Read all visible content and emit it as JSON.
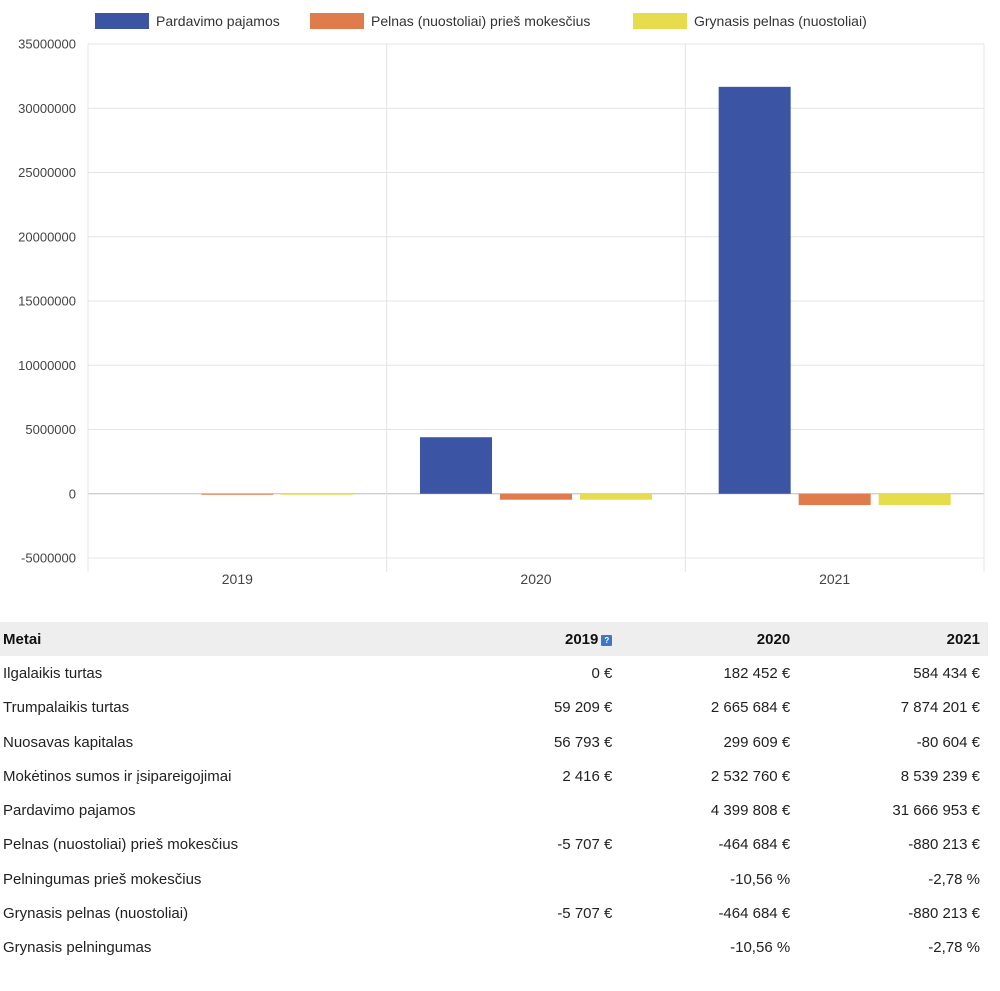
{
  "chart_data": {
    "type": "bar",
    "categories": [
      "2019",
      "2020",
      "2021"
    ],
    "series": [
      {
        "name": "Pardavimo pajamos",
        "color": "#3b55a4",
        "values": [
          null,
          4399808,
          31666953
        ]
      },
      {
        "name": "Pelnas (nuostoliai) prieš mokesčius",
        "color": "#e07b4c",
        "values": [
          -5707,
          -464684,
          -880213
        ]
      },
      {
        "name": "Grynasis pelnas (nuostoliai)",
        "color": "#e6dc4e",
        "values": [
          -5707,
          -464684,
          -880213
        ]
      }
    ],
    "ylim": [
      -5000000,
      35000000
    ],
    "yticks": [
      35000000,
      30000000,
      25000000,
      20000000,
      15000000,
      10000000,
      5000000,
      0,
      -5000000
    ],
    "ytick_labels": [
      "35000000",
      "30000000",
      "25000000",
      "20000000",
      "15000000",
      "10000000",
      "5000000",
      "0",
      "-5000000"
    ],
    "legend_position": "top",
    "grid": true,
    "title": "",
    "xlabel": "",
    "ylabel": ""
  },
  "table": {
    "headers": [
      "Metai",
      "2019",
      "2020",
      "2021"
    ],
    "rows": [
      {
        "label": "Ilgalaikis turtas",
        "values": [
          "0 €",
          "182 452 €",
          "584 434 €"
        ]
      },
      {
        "label": "Trumpalaikis turtas",
        "values": [
          "59 209 €",
          "2 665 684 €",
          "7 874 201 €"
        ]
      },
      {
        "label": "Nuosavas kapitalas",
        "values": [
          "56 793 €",
          "299 609 €",
          "-80 604 €"
        ]
      },
      {
        "label": "Mokėtinos sumos ir įsipareigojimai",
        "values": [
          "2 416 €",
          "2 532 760 €",
          "8 539 239 €"
        ]
      },
      {
        "label": "Pardavimo pajamos",
        "values": [
          "",
          "4 399 808 €",
          "31 666 953 €"
        ]
      },
      {
        "label": "Pelnas (nuostoliai) prieš mokesčius",
        "values": [
          "-5 707 €",
          "-464 684 €",
          "-880 213 €"
        ]
      },
      {
        "label": "Pelningumas prieš mokesčius",
        "values": [
          "",
          "-10,56 %",
          "-2,78 %"
        ]
      },
      {
        "label": "Grynasis pelnas (nuostoliai)",
        "values": [
          "-5 707 €",
          "-464 684 €",
          "-880 213 €"
        ]
      },
      {
        "label": "Grynasis pelningumas",
        "values": [
          "",
          "-10,56 %",
          "-2,78 %"
        ]
      }
    ]
  },
  "colors": {
    "grid": "#e4e4e4",
    "zero_line": "#bbbbbb",
    "header_bg": "#eeeeee"
  },
  "icons": {
    "year_info": "info-icon"
  }
}
